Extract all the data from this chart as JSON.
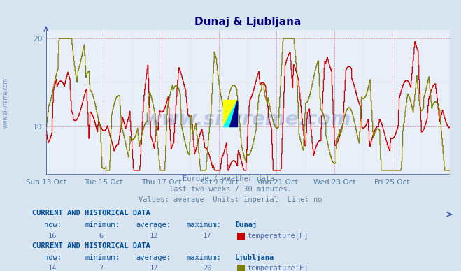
{
  "title": "Dunaj & Ljubljana",
  "bg_color": "#d8e4f0",
  "plot_bg_color": "#e8eff8",
  "title_color": "#000080",
  "line1_color": "#cc0000",
  "line2_color": "#808000",
  "ylim": [
    4.5,
    21
  ],
  "yticks": [
    10,
    20
  ],
  "tick_color": "#5080a0",
  "watermark_color": "#2040a0",
  "subtitle_lines": [
    "Europe / weather data.",
    "last two weeks / 30 minutes.",
    "Values: average  Units: imperial  Line: no"
  ],
  "subtitle_color": "#6080a0",
  "table1_header": "CURRENT AND HISTORICAL DATA",
  "table1_cols": [
    "now:",
    "minimum:",
    "average:",
    "maximum:",
    "Dunaj"
  ],
  "table1_vals": [
    "16",
    "6",
    "12",
    "17"
  ],
  "table1_legend": "temperature[F]",
  "table1_color": "#cc0000",
  "table2_header": "CURRENT AND HISTORICAL DATA",
  "table2_cols": [
    "now:",
    "minimum:",
    "average:",
    "maximum:",
    "Ljubljana"
  ],
  "table2_vals": [
    "14",
    "7",
    "12",
    "20"
  ],
  "table2_legend": "temperature[F]",
  "table2_color": "#808000",
  "header_color": "#0050a0",
  "data_color": "#5070b0",
  "x_tick_labels": [
    "Sun 13 Oct",
    "Tue 15 Oct",
    "Thu 17 Oct",
    "Sat 19 Oct",
    "Mon 21 Oct",
    "Wed 23 Oct",
    "Fri 25 Oct"
  ],
  "x_tick_positions": [
    0,
    96,
    192,
    288,
    384,
    480,
    576
  ],
  "n_points": 673
}
